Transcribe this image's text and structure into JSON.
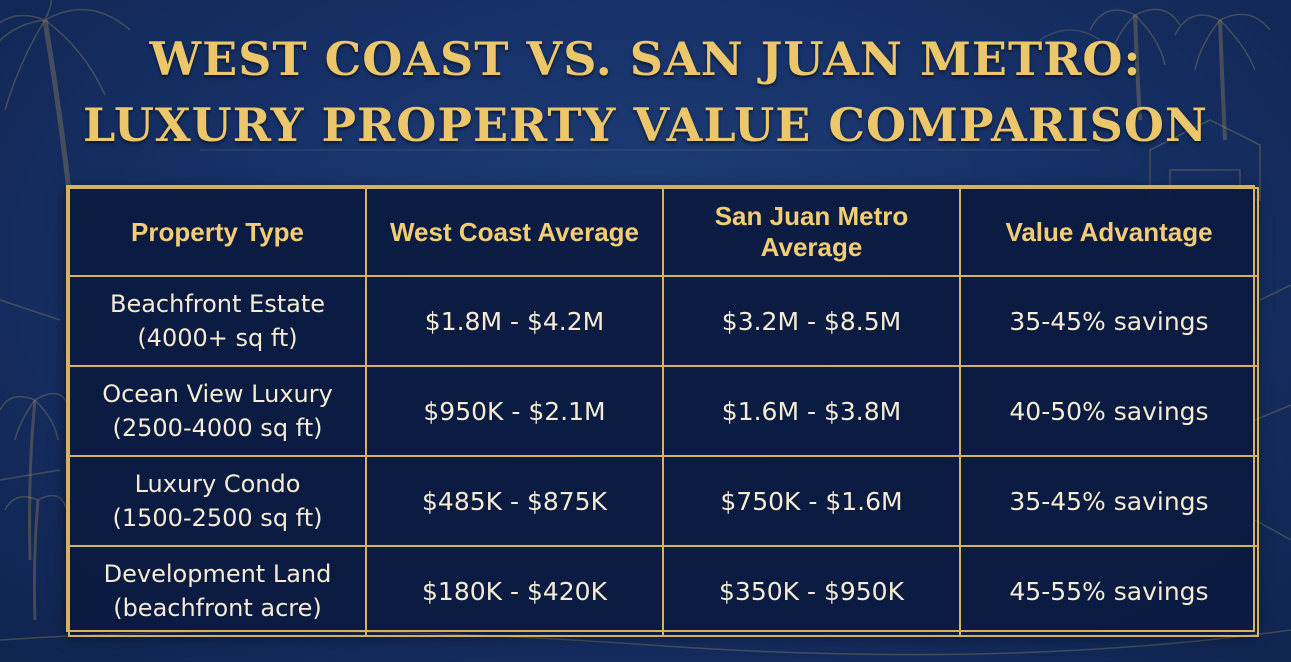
{
  "title": {
    "line1": "WEST COAST VS. SAN JUAN METRO:",
    "line2": "LUXURY PROPERTY VALUE COMPARISON"
  },
  "colors": {
    "background": "#173269",
    "gold": "#d6b15e",
    "title_gold": "#ecc66a",
    "cell_text": "#f4ecd4"
  },
  "chart_data": {
    "type": "table",
    "title": "WEST COAST VS. SAN JUAN METRO: LUXURY PROPERTY VALUE COMPARISON",
    "columns": [
      "Property Type",
      "West Coast Average",
      "San Juan Metro Average",
      "Value Advantage"
    ],
    "rows": [
      {
        "type": "Beachfront Estate",
        "detail": "(4000+ sq ft)",
        "west_coast": "$1.8M - $4.2M",
        "san_juan": "$3.2M - $8.5M",
        "advantage": "35-45% savings"
      },
      {
        "type": "Ocean View Luxury",
        "detail": "(2500-4000 sq ft)",
        "west_coast": "$950K - $2.1M",
        "san_juan": "$1.6M - $3.8M",
        "advantage": "40-50% savings"
      },
      {
        "type": "Luxury Condo",
        "detail": "(1500-2500 sq ft)",
        "west_coast": "$485K - $875K",
        "san_juan": "$750K - $1.6M",
        "advantage": "35-45% savings"
      },
      {
        "type": "Development Land",
        "detail": "(beachfront acre)",
        "west_coast": "$180K - $420K",
        "san_juan": "$350K - $950K",
        "advantage": "45-55% savings"
      }
    ]
  }
}
